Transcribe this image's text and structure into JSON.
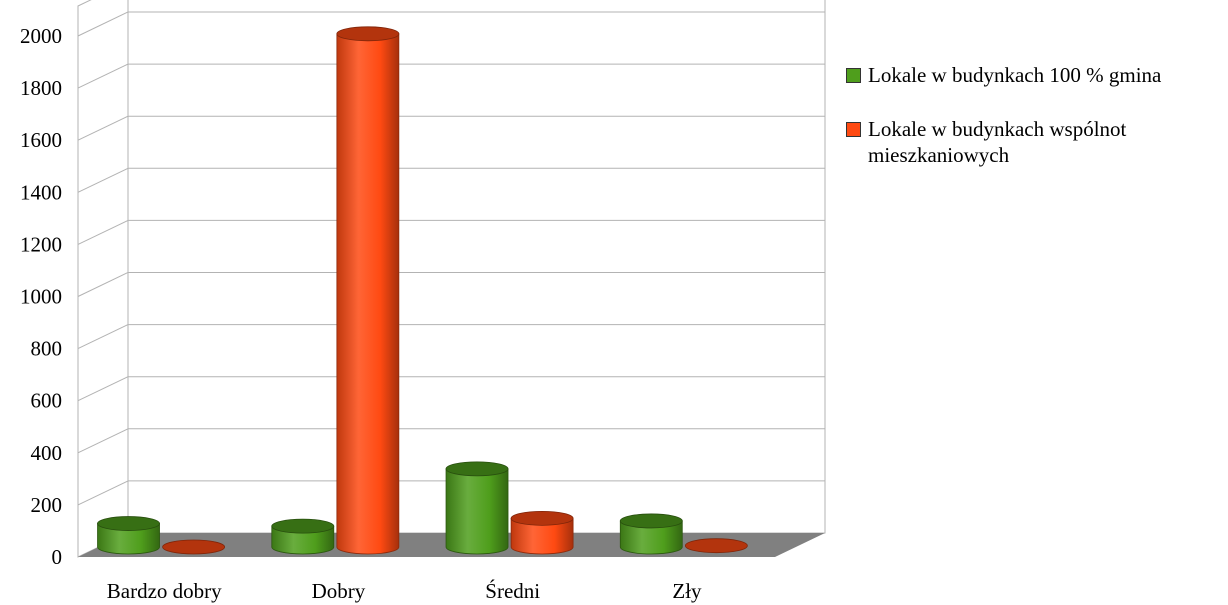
{
  "chart_data": {
    "type": "bar",
    "categories": [
      "Bardzo dobry",
      "Dobry",
      "Średni",
      "Zły"
    ],
    "series": [
      {
        "name": "Lokale w budynkach 100 % gmina",
        "color": "#4f9e1c",
        "values": [
          90,
          80,
          300,
          100
        ]
      },
      {
        "name": "Lokale w budynkach wspólnot mieszkaniowych",
        "color": "#ff4a12",
        "values": [
          0,
          1970,
          110,
          5
        ]
      }
    ],
    "ylim": [
      0,
      2000
    ],
    "yticks": [
      0,
      200,
      400,
      600,
      800,
      1000,
      1200,
      1400,
      1600,
      1800,
      2000
    ],
    "grid": true,
    "legend_position": "right",
    "style": "3d-cylinder"
  }
}
